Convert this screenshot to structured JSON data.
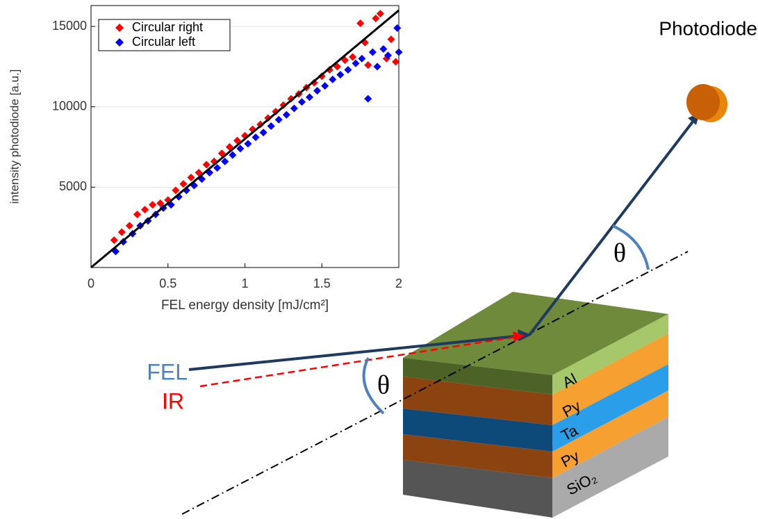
{
  "chart_data": {
    "type": "scatter",
    "xlabel": "FEL energy density [mJ/cm²]",
    "ylabel": "intensity photodiode [a.u.]",
    "xlim": [
      0,
      2
    ],
    "ylim": [
      0,
      16300
    ],
    "xticks": [
      0,
      0.5,
      1,
      1.5,
      2
    ],
    "yticks": [
      5000,
      10000,
      15000
    ],
    "grid": true,
    "legend": "upper left",
    "series": [
      {
        "name": "Circular right",
        "color": "#ff0000",
        "x": [
          0.15,
          0.2,
          0.25,
          0.3,
          0.35,
          0.4,
          0.45,
          0.5,
          0.55,
          0.6,
          0.65,
          0.7,
          0.75,
          0.8,
          0.85,
          0.9,
          0.95,
          1.0,
          1.05,
          1.1,
          1.15,
          1.2,
          1.25,
          1.3,
          1.35,
          1.4,
          1.45,
          1.5,
          1.55,
          1.6,
          1.65,
          1.7,
          1.75,
          1.78,
          1.8,
          1.85,
          1.88,
          1.92,
          1.95,
          1.98
        ],
        "values": [
          1700,
          2200,
          2600,
          3300,
          3600,
          3900,
          4000,
          4200,
          4800,
          5200,
          5600,
          5900,
          6400,
          6600,
          7100,
          7500,
          7900,
          8200,
          8600,
          8900,
          9300,
          9700,
          10100,
          10500,
          10800,
          11200,
          11500,
          11900,
          12300,
          12500,
          12900,
          13100,
          15200,
          14000,
          12600,
          15500,
          15800,
          13000,
          14200,
          12800
        ]
      },
      {
        "name": "Circular left",
        "color": "#0000ff",
        "x": [
          0.16,
          0.21,
          0.27,
          0.32,
          0.37,
          0.42,
          0.47,
          0.52,
          0.57,
          0.62,
          0.67,
          0.72,
          0.77,
          0.82,
          0.87,
          0.92,
          0.97,
          1.02,
          1.07,
          1.12,
          1.17,
          1.22,
          1.27,
          1.32,
          1.37,
          1.42,
          1.47,
          1.52,
          1.57,
          1.62,
          1.67,
          1.72,
          1.76,
          1.8,
          1.83,
          1.86,
          1.9,
          1.93,
          1.99,
          2.0
        ],
        "values": [
          1000,
          1600,
          2100,
          2600,
          2900,
          3300,
          3700,
          3900,
          4400,
          4800,
          5100,
          5500,
          5900,
          6200,
          6600,
          7000,
          7400,
          7700,
          8100,
          8400,
          8800,
          9200,
          9500,
          9900,
          10300,
          10600,
          11000,
          11300,
          11700,
          12000,
          12300,
          12700,
          13000,
          10500,
          13400,
          12500,
          13600,
          13200,
          14900,
          13400
        ]
      }
    ],
    "fit_line": {
      "color": "#000000",
      "x": [
        0,
        2
      ],
      "values": [
        0,
        16000
      ]
    }
  },
  "diagram": {
    "photodiode": "Photodiode",
    "fel": "FEL",
    "ir": "IR",
    "angle_in": "θ",
    "angle_out": "θ",
    "layers": [
      "Al",
      "Py",
      "Ta",
      "Py",
      "SiO₂"
    ]
  }
}
